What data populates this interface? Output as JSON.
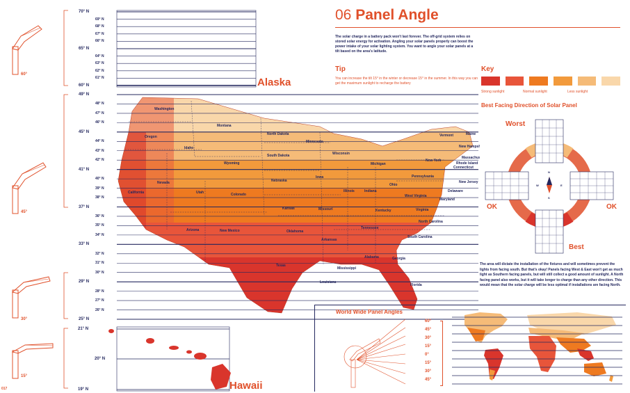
{
  "title": {
    "number": "06",
    "text": "Panel Angle"
  },
  "intro": "The solar charge in a battery pack won't last forever. The off-grid system relies on stored solar energy for activation. Angling your solar panels properly can boost the power intake of your solar lighting system. You want to angle your solar panels at a tilt based on the area's latitude.",
  "tip": {
    "heading": "Tip",
    "text": "You can increase the tilt 15° in the winter or decrease 15° in the summer. In this way you can get the maximum sunlight to recharge the battery"
  },
  "key": {
    "heading": "Key",
    "colors": [
      "#d9352c",
      "#e8553a",
      "#ee7a20",
      "#f29a3c",
      "#f5bb78",
      "#f9d7aa"
    ],
    "labels": [
      "Strong sunlight",
      "Normal sunlight",
      "Less sunlight"
    ]
  },
  "facing": {
    "heading": "Best Facing Direction of Solar Panel",
    "worst": "Worst",
    "best": "Best",
    "ok_left": "OK",
    "ok_right": "OK",
    "compass": {
      "n": "N",
      "s": "S",
      "w": "W",
      "e": "E"
    },
    "note": "The area will dictate the installation of the fixtures and will sometimes prevent the lights from facing south. But that's okay! Panels facing West & East won't get as much light as Southern facing panels, but will still collect a good amount of sunlight. A North facing panel also works, but it will take longer to charge than any other direction. This would mean that the solar charge will be less optimal if installations are facing North."
  },
  "alaska": {
    "label": "Alaska",
    "lats": [
      "70° N",
      "69° N",
      "68° N",
      "67° N",
      "66° N",
      "65° N",
      "64° N",
      "63° N",
      "62° N",
      "61° N",
      "60° N"
    ]
  },
  "contiguous": {
    "lats": [
      "49° N",
      "48° N",
      "47° N",
      "46° N",
      "45° N",
      "44° N",
      "43° N",
      "42° N",
      "41° N",
      "40° N",
      "39° N",
      "38° N",
      "37° N",
      "36° N",
      "35° N",
      "34° N",
      "33° N",
      "32° N",
      "31° N",
      "30° N",
      "29° N",
      "28° N",
      "27° N",
      "26° N",
      "25° N"
    ],
    "states": [
      {
        "name": "Washington"
      },
      {
        "name": "Oregon"
      },
      {
        "name": "California"
      },
      {
        "name": "Idaho"
      },
      {
        "name": "Nevada"
      },
      {
        "name": "Montana"
      },
      {
        "name": "Wyoming"
      },
      {
        "name": "Utah"
      },
      {
        "name": "Arizona"
      },
      {
        "name": "Colorado"
      },
      {
        "name": "New Mexico"
      },
      {
        "name": "North Dakota"
      },
      {
        "name": "South Dakota"
      },
      {
        "name": "Nebraska"
      },
      {
        "name": "Kansas"
      },
      {
        "name": "Oklahoma"
      },
      {
        "name": "Texas"
      },
      {
        "name": "Minnesota"
      },
      {
        "name": "Iowa"
      },
      {
        "name": "Missouri"
      },
      {
        "name": "Arkansas"
      },
      {
        "name": "Louisiana"
      },
      {
        "name": "Wisconsin"
      },
      {
        "name": "Illinois"
      },
      {
        "name": "Mississippi"
      },
      {
        "name": "Michigan"
      },
      {
        "name": "Indiana"
      },
      {
        "name": "Kentucky"
      },
      {
        "name": "Tennessee"
      },
      {
        "name": "Alabama"
      },
      {
        "name": "Ohio"
      },
      {
        "name": "West Virginia"
      },
      {
        "name": "Virginia"
      },
      {
        "name": "North Carolina"
      },
      {
        "name": "South Carolina"
      },
      {
        "name": "Georgia"
      },
      {
        "name": "Florida"
      },
      {
        "name": "Pennsylvania"
      },
      {
        "name": "New York"
      },
      {
        "name": "Vermont"
      },
      {
        "name": "Maine"
      },
      {
        "name": "New Hampshire"
      },
      {
        "name": "Massachusetts"
      },
      {
        "name": "Connecticut"
      },
      {
        "name": "Rhode Island"
      },
      {
        "name": "New Jersey"
      },
      {
        "name": "Delaware"
      },
      {
        "name": "Maryland"
      }
    ]
  },
  "hawaii": {
    "label": "Hawaii",
    "lats": [
      "21° N",
      "20° N",
      "19° N"
    ]
  },
  "angles": [
    "60°",
    "45°",
    "30°",
    "15°"
  ],
  "worldwide": {
    "heading": "World Wide Panel Angles",
    "lats": [
      "60°",
      "45°",
      "30°",
      "15°",
      "0°",
      "15°",
      "30°",
      "45°"
    ]
  },
  "page_number": "017"
}
